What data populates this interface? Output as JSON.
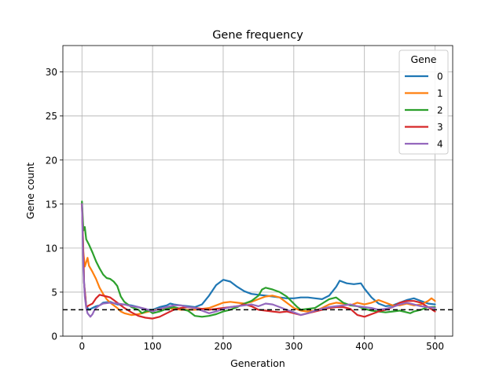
{
  "chart_data": {
    "type": "line",
    "title": "Gene frequency",
    "xlabel": "Generation",
    "ylabel": "Gene count",
    "xlim": [
      -27,
      525
    ],
    "ylim": [
      0,
      33
    ],
    "xticks": [
      0,
      100,
      200,
      300,
      400,
      500
    ],
    "yticks": [
      0,
      5,
      10,
      15,
      20,
      25,
      30
    ],
    "grid": true,
    "legend": {
      "title": "Gene",
      "position": "top-right"
    },
    "reference_line": {
      "y": 3,
      "style": "dashed",
      "color": "#000000"
    },
    "series": [
      {
        "name": "0",
        "color": "#1f77b4",
        "points": [
          [
            0,
            15.2
          ],
          [
            3,
            6.0
          ],
          [
            6,
            3.4
          ],
          [
            10,
            3.0
          ],
          [
            15,
            3.2
          ],
          [
            20,
            3.4
          ],
          [
            25,
            3.5
          ],
          [
            30,
            3.8
          ],
          [
            40,
            3.9
          ],
          [
            50,
            3.6
          ],
          [
            60,
            3.6
          ],
          [
            70,
            3.5
          ],
          [
            80,
            3.3
          ],
          [
            90,
            3.0
          ],
          [
            100,
            3.0
          ],
          [
            110,
            3.3
          ],
          [
            120,
            3.5
          ],
          [
            125,
            3.7
          ],
          [
            130,
            3.6
          ],
          [
            140,
            3.5
          ],
          [
            150,
            3.4
          ],
          [
            160,
            3.3
          ],
          [
            170,
            3.6
          ],
          [
            180,
            4.6
          ],
          [
            190,
            5.8
          ],
          [
            200,
            6.4
          ],
          [
            210,
            6.2
          ],
          [
            220,
            5.6
          ],
          [
            230,
            5.1
          ],
          [
            240,
            4.8
          ],
          [
            250,
            4.7
          ],
          [
            260,
            4.6
          ],
          [
            270,
            4.5
          ],
          [
            280,
            4.4
          ],
          [
            290,
            4.3
          ],
          [
            300,
            4.3
          ],
          [
            310,
            4.4
          ],
          [
            320,
            4.4
          ],
          [
            330,
            4.3
          ],
          [
            340,
            4.2
          ],
          [
            350,
            4.6
          ],
          [
            360,
            5.6
          ],
          [
            365,
            6.3
          ],
          [
            375,
            6.0
          ],
          [
            385,
            5.9
          ],
          [
            395,
            6.0
          ],
          [
            400,
            5.4
          ],
          [
            410,
            4.4
          ],
          [
            420,
            3.7
          ],
          [
            430,
            3.4
          ],
          [
            440,
            3.5
          ],
          [
            450,
            3.8
          ],
          [
            460,
            4.1
          ],
          [
            470,
            4.3
          ],
          [
            480,
            4.0
          ],
          [
            490,
            3.7
          ],
          [
            500,
            3.6
          ]
        ]
      },
      {
        "name": "1",
        "color": "#ff7f0e",
        "points": [
          [
            0,
            15.0
          ],
          [
            2,
            9.5
          ],
          [
            4,
            7.9
          ],
          [
            6,
            8.4
          ],
          [
            8,
            8.9
          ],
          [
            10,
            8.0
          ],
          [
            15,
            7.3
          ],
          [
            20,
            6.5
          ],
          [
            25,
            5.5
          ],
          [
            30,
            4.8
          ],
          [
            35,
            4.2
          ],
          [
            40,
            3.8
          ],
          [
            45,
            3.5
          ],
          [
            50,
            3.2
          ],
          [
            55,
            2.8
          ],
          [
            60,
            2.6
          ],
          [
            70,
            2.4
          ],
          [
            80,
            2.5
          ],
          [
            90,
            2.7
          ],
          [
            100,
            2.9
          ],
          [
            110,
            3.1
          ],
          [
            120,
            3.2
          ],
          [
            130,
            3.1
          ],
          [
            140,
            3.0
          ],
          [
            150,
            3.0
          ],
          [
            160,
            3.0
          ],
          [
            170,
            3.1
          ],
          [
            180,
            3.2
          ],
          [
            190,
            3.5
          ],
          [
            200,
            3.8
          ],
          [
            210,
            3.9
          ],
          [
            220,
            3.8
          ],
          [
            230,
            3.7
          ],
          [
            240,
            3.9
          ],
          [
            250,
            4.2
          ],
          [
            260,
            4.5
          ],
          [
            270,
            4.6
          ],
          [
            280,
            4.4
          ],
          [
            290,
            3.8
          ],
          [
            300,
            3.2
          ],
          [
            310,
            2.9
          ],
          [
            320,
            2.8
          ],
          [
            330,
            2.9
          ],
          [
            340,
            3.2
          ],
          [
            350,
            3.6
          ],
          [
            360,
            3.8
          ],
          [
            370,
            3.7
          ],
          [
            380,
            3.5
          ],
          [
            390,
            3.8
          ],
          [
            400,
            3.6
          ],
          [
            410,
            3.8
          ],
          [
            420,
            4.1
          ],
          [
            430,
            3.8
          ],
          [
            440,
            3.5
          ],
          [
            450,
            3.5
          ],
          [
            460,
            3.7
          ],
          [
            470,
            3.5
          ],
          [
            480,
            3.6
          ],
          [
            490,
            4.0
          ],
          [
            495,
            4.3
          ],
          [
            500,
            4.0
          ]
        ]
      },
      {
        "name": "2",
        "color": "#2ca02c",
        "points": [
          [
            0,
            15.3
          ],
          [
            2,
            12.0
          ],
          [
            4,
            12.4
          ],
          [
            6,
            11.0
          ],
          [
            10,
            10.4
          ],
          [
            15,
            9.5
          ],
          [
            20,
            8.5
          ],
          [
            25,
            7.7
          ],
          [
            30,
            7.0
          ],
          [
            35,
            6.6
          ],
          [
            40,
            6.5
          ],
          [
            45,
            6.2
          ],
          [
            50,
            5.7
          ],
          [
            55,
            4.5
          ],
          [
            60,
            3.9
          ],
          [
            70,
            3.3
          ],
          [
            80,
            3.0
          ],
          [
            85,
            2.6
          ],
          [
            90,
            2.8
          ],
          [
            95,
            2.9
          ],
          [
            100,
            2.6
          ],
          [
            110,
            2.8
          ],
          [
            120,
            3.1
          ],
          [
            130,
            3.3
          ],
          [
            140,
            3.1
          ],
          [
            150,
            2.9
          ],
          [
            155,
            2.6
          ],
          [
            160,
            2.3
          ],
          [
            170,
            2.2
          ],
          [
            180,
            2.3
          ],
          [
            190,
            2.5
          ],
          [
            200,
            2.8
          ],
          [
            210,
            3.0
          ],
          [
            220,
            3.3
          ],
          [
            230,
            3.7
          ],
          [
            240,
            4.0
          ],
          [
            250,
            4.6
          ],
          [
            255,
            5.3
          ],
          [
            260,
            5.5
          ],
          [
            270,
            5.3
          ],
          [
            280,
            5.0
          ],
          [
            290,
            4.5
          ],
          [
            300,
            3.7
          ],
          [
            305,
            3.3
          ],
          [
            310,
            3.0
          ],
          [
            320,
            3.1
          ],
          [
            330,
            3.2
          ],
          [
            340,
            3.7
          ],
          [
            350,
            4.2
          ],
          [
            360,
            4.4
          ],
          [
            370,
            3.8
          ],
          [
            380,
            3.5
          ],
          [
            390,
            3.4
          ],
          [
            400,
            3.1
          ],
          [
            410,
            2.9
          ],
          [
            420,
            2.8
          ],
          [
            430,
            2.7
          ],
          [
            440,
            2.8
          ],
          [
            450,
            2.9
          ],
          [
            460,
            2.7
          ],
          [
            465,
            2.6
          ],
          [
            470,
            2.8
          ],
          [
            480,
            3.0
          ],
          [
            490,
            3.3
          ],
          [
            500,
            3.3
          ]
        ]
      },
      {
        "name": "3",
        "color": "#d62728",
        "points": [
          [
            0,
            15.0
          ],
          [
            3,
            6.0
          ],
          [
            6,
            3.3
          ],
          [
            10,
            3.5
          ],
          [
            15,
            3.7
          ],
          [
            20,
            4.3
          ],
          [
            25,
            4.7
          ],
          [
            30,
            4.6
          ],
          [
            35,
            4.5
          ],
          [
            40,
            4.4
          ],
          [
            45,
            4.1
          ],
          [
            50,
            3.8
          ],
          [
            60,
            3.2
          ],
          [
            70,
            2.7
          ],
          [
            80,
            2.3
          ],
          [
            90,
            2.1
          ],
          [
            100,
            2.0
          ],
          [
            110,
            2.2
          ],
          [
            120,
            2.6
          ],
          [
            130,
            3.0
          ],
          [
            140,
            3.2
          ],
          [
            150,
            3.3
          ],
          [
            160,
            3.2
          ],
          [
            170,
            3.1
          ],
          [
            180,
            3.0
          ],
          [
            190,
            3.1
          ],
          [
            200,
            3.2
          ],
          [
            210,
            3.3
          ],
          [
            220,
            3.4
          ],
          [
            230,
            3.6
          ],
          [
            240,
            3.4
          ],
          [
            250,
            3.0
          ],
          [
            260,
            2.9
          ],
          [
            270,
            2.8
          ],
          [
            280,
            2.7
          ],
          [
            290,
            2.8
          ],
          [
            300,
            2.6
          ],
          [
            310,
            2.4
          ],
          [
            320,
            2.6
          ],
          [
            330,
            2.8
          ],
          [
            340,
            3.0
          ],
          [
            350,
            3.2
          ],
          [
            360,
            3.3
          ],
          [
            370,
            3.3
          ],
          [
            380,
            3.1
          ],
          [
            390,
            2.4
          ],
          [
            400,
            2.2
          ],
          [
            410,
            2.5
          ],
          [
            420,
            2.8
          ],
          [
            430,
            3.0
          ],
          [
            440,
            3.3
          ],
          [
            450,
            3.8
          ],
          [
            460,
            4.0
          ],
          [
            470,
            4.0
          ],
          [
            480,
            3.8
          ],
          [
            490,
            3.3
          ],
          [
            500,
            2.8
          ]
        ]
      },
      {
        "name": "4",
        "color": "#9467bd",
        "points": [
          [
            0,
            15.0
          ],
          [
            2,
            7.5
          ],
          [
            4,
            4.5
          ],
          [
            6,
            3.2
          ],
          [
            8,
            2.6
          ],
          [
            10,
            2.4
          ],
          [
            12,
            2.2
          ],
          [
            15,
            2.5
          ],
          [
            18,
            3.0
          ],
          [
            20,
            3.2
          ],
          [
            25,
            3.5
          ],
          [
            30,
            3.7
          ],
          [
            40,
            3.8
          ],
          [
            50,
            3.7
          ],
          [
            60,
            3.6
          ],
          [
            70,
            3.4
          ],
          [
            80,
            3.3
          ],
          [
            90,
            3.1
          ],
          [
            100,
            2.8
          ],
          [
            110,
            3.1
          ],
          [
            120,
            3.3
          ],
          [
            130,
            3.5
          ],
          [
            140,
            3.5
          ],
          [
            150,
            3.3
          ],
          [
            160,
            3.2
          ],
          [
            170,
            2.9
          ],
          [
            180,
            2.6
          ],
          [
            190,
            2.8
          ],
          [
            200,
            3.1
          ],
          [
            210,
            3.3
          ],
          [
            220,
            3.4
          ],
          [
            230,
            3.5
          ],
          [
            240,
            3.6
          ],
          [
            250,
            3.4
          ],
          [
            260,
            3.7
          ],
          [
            270,
            3.6
          ],
          [
            280,
            3.3
          ],
          [
            290,
            3.0
          ],
          [
            300,
            2.7
          ],
          [
            310,
            2.4
          ],
          [
            320,
            2.6
          ],
          [
            330,
            2.9
          ],
          [
            340,
            3.1
          ],
          [
            350,
            3.3
          ],
          [
            360,
            3.4
          ],
          [
            370,
            3.5
          ],
          [
            380,
            3.6
          ],
          [
            390,
            3.4
          ],
          [
            400,
            3.3
          ],
          [
            410,
            3.2
          ],
          [
            420,
            3.0
          ],
          [
            430,
            3.1
          ],
          [
            440,
            3.3
          ],
          [
            450,
            3.6
          ],
          [
            460,
            3.8
          ],
          [
            470,
            3.6
          ],
          [
            480,
            3.4
          ],
          [
            490,
            3.3
          ],
          [
            500,
            3.2
          ]
        ]
      }
    ]
  }
}
